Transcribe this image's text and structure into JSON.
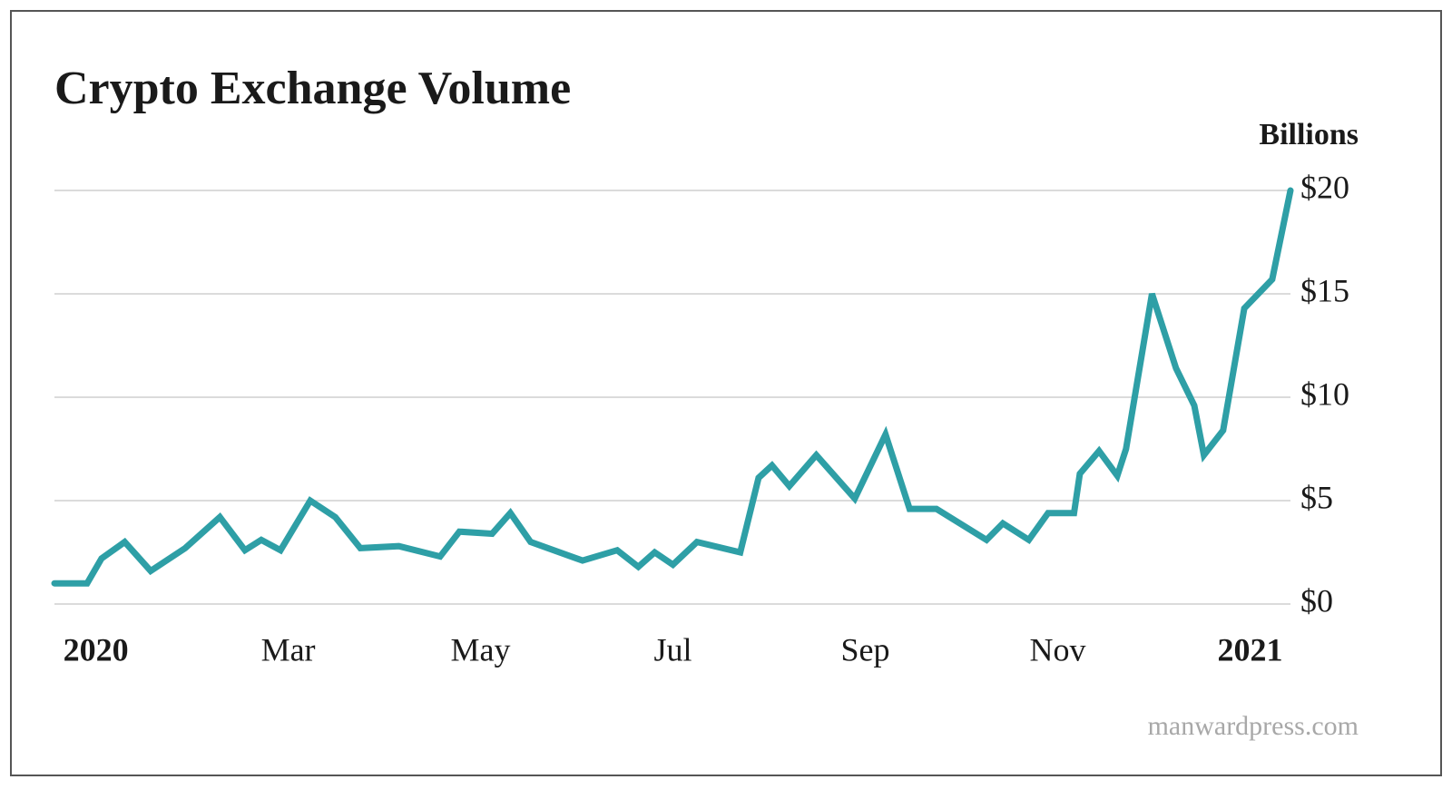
{
  "chart_data": {
    "type": "line",
    "title": "Crypto Exchange Volume",
    "y_label": "Billions",
    "source": "manwardpress.com",
    "x": [
      -0.43,
      -0.09,
      0.06,
      0.3,
      0.57,
      0.93,
      1.29,
      1.55,
      1.72,
      1.92,
      2.23,
      2.49,
      2.75,
      3.15,
      3.58,
      3.78,
      4.12,
      4.31,
      4.52,
      5.06,
      5.42,
      5.64,
      5.81,
      6.0,
      6.25,
      6.7,
      6.89,
      7.03,
      7.21,
      7.49,
      7.89,
      8.21,
      8.46,
      8.74,
      9.26,
      9.43,
      9.7,
      9.9,
      10.17,
      10.23,
      10.43,
      10.62,
      10.71,
      10.98,
      11.23,
      11.42,
      11.52,
      11.72,
      11.94,
      12.23,
      12.42
    ],
    "series": [
      {
        "name": "Volume",
        "color": "#2e9fa6",
        "values": [
          1.0,
          1.0,
          2.2,
          3.0,
          1.6,
          2.7,
          4.2,
          2.6,
          3.1,
          2.6,
          5.0,
          4.2,
          2.7,
          2.8,
          2.3,
          3.5,
          3.4,
          4.4,
          3.0,
          2.1,
          2.6,
          1.8,
          2.5,
          1.9,
          3.0,
          2.5,
          6.1,
          6.7,
          5.7,
          7.2,
          5.1,
          8.2,
          4.6,
          4.6,
          3.1,
          3.9,
          3.1,
          4.4,
          4.4,
          6.3,
          7.4,
          6.2,
          7.5,
          15.0,
          11.4,
          9.6,
          7.2,
          8.4,
          14.3,
          15.7,
          20.0
        ]
      }
    ],
    "xlim": [
      -0.43,
      12.42
    ],
    "xticks": [
      {
        "value": 0,
        "label": "2020"
      },
      {
        "value": 2,
        "label": "Mar"
      },
      {
        "value": 4,
        "label": "May"
      },
      {
        "value": 6,
        "label": "Jul"
      },
      {
        "value": 8,
        "label": "Sep"
      },
      {
        "value": 10,
        "label": "Nov"
      },
      {
        "value": 12,
        "label": "2021"
      }
    ],
    "ylim": [
      0,
      20
    ],
    "yticks": [
      {
        "value": 0,
        "label": "$0"
      },
      {
        "value": 5,
        "label": "$5"
      },
      {
        "value": 10,
        "label": "$10"
      },
      {
        "value": 15,
        "label": "$15"
      },
      {
        "value": 20,
        "label": "$20"
      }
    ],
    "grid": true
  }
}
